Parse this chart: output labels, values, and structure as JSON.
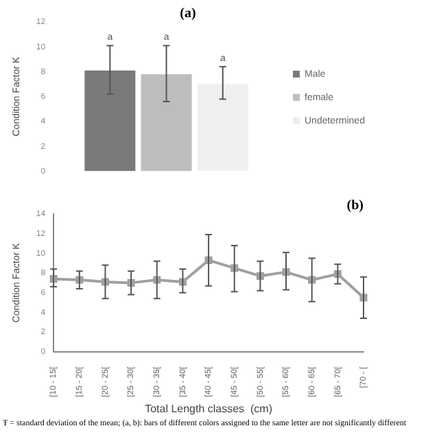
{
  "chart_data": [
    {
      "type": "bar",
      "title": "(a)",
      "ylabel": "Condition Factor K",
      "categories": [
        null
      ],
      "series": [
        {
          "name": "Male",
          "color": "#7a7a7a",
          "values": [
            8.1
          ],
          "errors": [
            [
              6.2,
              10.1
            ]
          ]
        },
        {
          "name": "female",
          "color": "#bdbdbd",
          "values": [
            7.8
          ],
          "errors": [
            [
              5.6,
              10.1
            ]
          ]
        },
        {
          "name": "Undetermined",
          "color": "#efefef",
          "values": [
            7.0
          ],
          "errors": [
            [
              5.8,
              8.4
            ]
          ]
        }
      ],
      "annotations": [
        {
          "text": "a",
          "y": 10.4
        },
        {
          "text": "a",
          "y": 10.4
        },
        {
          "text": "a",
          "y": 8.7
        }
      ],
      "ylim": [
        0,
        12
      ],
      "yticks": [
        0,
        2,
        4,
        6,
        8,
        10,
        12
      ],
      "grid": false,
      "legend": "right"
    },
    {
      "type": "line",
      "title": "(b)",
      "xlabel": "Total Length classes  (cm)",
      "ylabel": "Condition Factor K",
      "categories": [
        "[10 - 15[",
        "[15 - 20[",
        "[20 - 25[",
        "[25 - 30[",
        "[30 - 35[",
        "[35 - 40[",
        "[40 - 45[",
        "[45 - 50[",
        "[50 - 55[",
        "[55 - 60[",
        "[60 - 65[",
        "[65 - 70[",
        "[70 - ["
      ],
      "series": [
        {
          "color": "#a0a0a0",
          "values": [
            7.4,
            7.3,
            7.1,
            7.0,
            7.3,
            7.1,
            9.3,
            8.5,
            7.7,
            8.1,
            7.3,
            7.9,
            5.5
          ],
          "errors": [
            [
              6.6,
              8.4
            ],
            [
              6.4,
              8.2
            ],
            [
              5.4,
              8.8
            ],
            [
              5.8,
              8.2
            ],
            [
              5.4,
              9.2
            ],
            [
              6.0,
              8.4
            ],
            [
              6.7,
              11.9
            ],
            [
              6.1,
              10.8
            ],
            [
              6.2,
              9.2
            ],
            [
              6.3,
              10.1
            ],
            [
              5.1,
              9.5
            ],
            [
              6.9,
              8.9
            ],
            [
              3.4,
              7.6
            ]
          ]
        }
      ],
      "annotations": [
        "Ŧ = standard deviation of the mean; (a, b): bars of different colors assigned to the same letter are not significantly different"
      ],
      "ylim": [
        0,
        14
      ],
      "yticks": [
        0,
        2,
        4,
        6,
        8,
        10,
        12,
        14
      ],
      "grid": false,
      "legend": false,
      "marker": "square"
    }
  ]
}
